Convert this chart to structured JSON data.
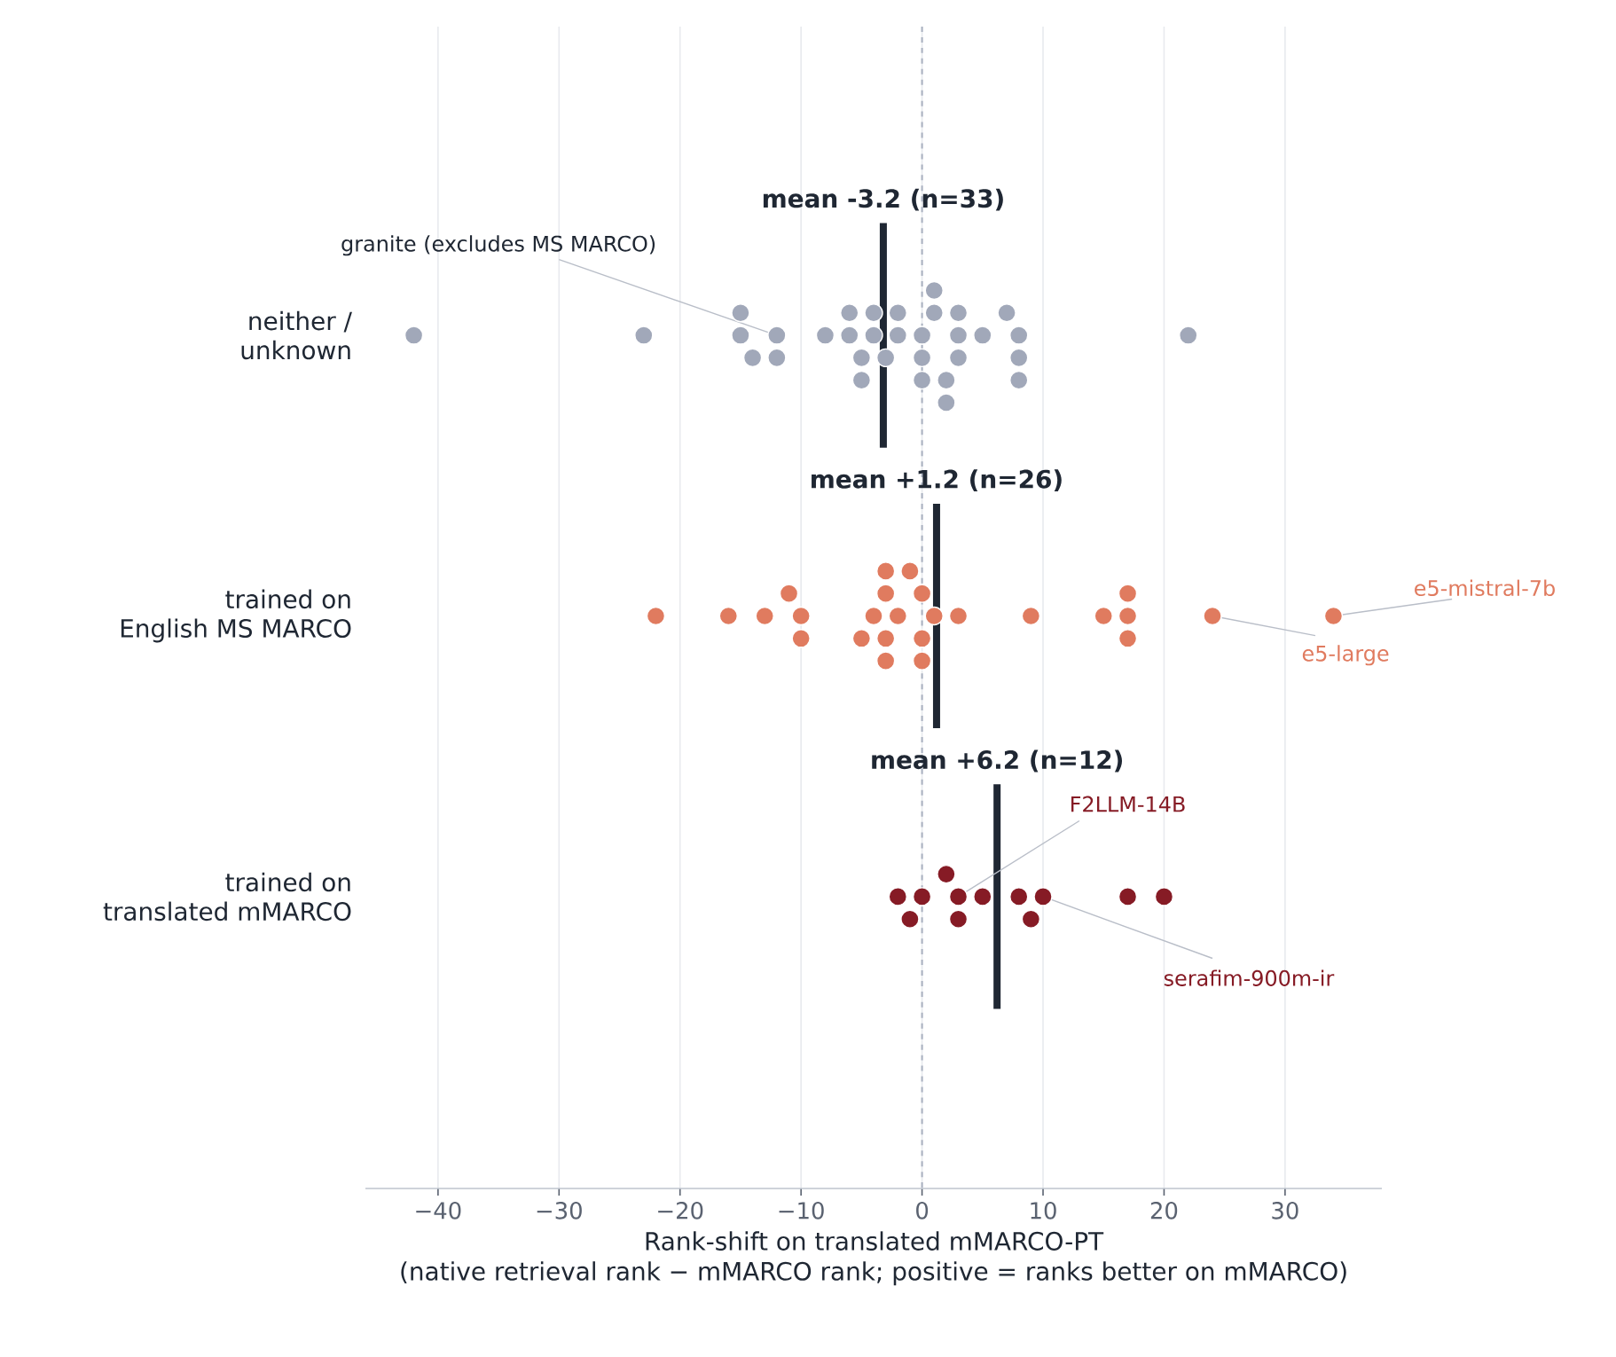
{
  "chart_data": {
    "type": "scatter",
    "orientation": "horizontal",
    "categories": [
      "neither /\nunknown",
      "trained on\nEnglish MS MARCO",
      "trained on\ntranslated mMARCO"
    ],
    "xlabel": "Rank-shift on translated mMARCO-PT\n(native retrieval rank − mMARCO rank; positive = ranks better on mMARCO)",
    "xlim": [
      -46,
      38
    ],
    "xticks": [
      {
        "value": -40,
        "label": "−40"
      },
      {
        "value": -30,
        "label": "−30"
      },
      {
        "value": -20,
        "label": "−20"
      },
      {
        "value": -10,
        "label": "−10"
      },
      0,
      10,
      20,
      30
    ],
    "grid": "x",
    "marker": "circle",
    "series": [
      {
        "color": "#a1a8b9",
        "x": [
          "neither /\nunknown",
          "neither /\nunknown",
          "neither /\nunknown",
          "neither /\nunknown",
          "neither /\nunknown",
          "neither /\nunknown",
          "neither /\nunknown",
          "neither /\nunknown",
          "neither /\nunknown",
          "neither /\nunknown",
          "neither /\nunknown",
          "neither /\nunknown",
          "neither /\nunknown",
          "neither /\nunknown",
          "neither /\nunknown",
          "neither /\nunknown",
          "neither /\nunknown",
          "neither /\nunknown",
          "neither /\nunknown",
          "neither /\nunknown",
          "neither /\nunknown",
          "neither /\nunknown",
          "neither /\nunknown",
          "neither /\nunknown",
          "neither /\nunknown",
          "neither /\nunknown",
          "neither /\nunknown",
          "neither /\nunknown",
          "neither /\nunknown",
          "neither /\nunknown",
          "neither /\nunknown",
          "neither /\nunknown",
          "neither /\nunknown"
        ],
        "values": [
          -42,
          -15,
          -12,
          -2,
          0,
          0,
          -4,
          8,
          22,
          -14,
          -8,
          -5,
          -4,
          -23,
          -12,
          1,
          3,
          3,
          3,
          5,
          8,
          -3,
          -6,
          -6,
          0,
          2,
          1,
          2,
          7,
          -15,
          -5,
          -2,
          8
        ]
      },
      {
        "color": "#e07b5f",
        "x": [
          "trained on\nEnglish MS MARCO",
          "trained on\nEnglish MS MARCO",
          "trained on\nEnglish MS MARCO",
          "trained on\nEnglish MS MARCO",
          "trained on\nEnglish MS MARCO",
          "trained on\nEnglish MS MARCO",
          "trained on\nEnglish MS MARCO",
          "trained on\nEnglish MS MARCO",
          "trained on\nEnglish MS MARCO",
          "trained on\nEnglish MS MARCO",
          "trained on\nEnglish MS MARCO",
          "trained on\nEnglish MS MARCO",
          "trained on\nEnglish MS MARCO",
          "trained on\nEnglish MS MARCO",
          "trained on\nEnglish MS MARCO",
          "trained on\nEnglish MS MARCO",
          "trained on\nEnglish MS MARCO",
          "trained on\nEnglish MS MARCO",
          "trained on\nEnglish MS MARCO",
          "trained on\nEnglish MS MARCO",
          "trained on\nEnglish MS MARCO",
          "trained on\nEnglish MS MARCO",
          "trained on\nEnglish MS MARCO",
          "trained on\nEnglish MS MARCO",
          "trained on\nEnglish MS MARCO",
          "trained on\nEnglish MS MARCO"
        ],
        "values": [
          3,
          -2,
          17,
          17,
          1,
          24,
          -4,
          -3,
          -3,
          0,
          -10,
          -10,
          0,
          -22,
          -13,
          -11,
          -16,
          15,
          17,
          -3,
          -3,
          0,
          9,
          -5,
          -1,
          34
        ]
      },
      {
        "color": "#861b25",
        "x": [
          "trained on\ntranslated mMARCO",
          "trained on\ntranslated mMARCO",
          "trained on\ntranslated mMARCO",
          "trained on\ntranslated mMARCO",
          "trained on\ntranslated mMARCO",
          "trained on\ntranslated mMARCO",
          "trained on\ntranslated mMARCO",
          "trained on\ntranslated mMARCO",
          "trained on\ntranslated mMARCO",
          "trained on\ntranslated mMARCO",
          "trained on\ntranslated mMARCO",
          "trained on\ntranslated mMARCO"
        ],
        "values": [
          3,
          3,
          8,
          10,
          -2,
          -1,
          20,
          2,
          17,
          0,
          5,
          9
        ]
      }
    ],
    "ref_lines": [
      {
        "axis": "x",
        "value": 0,
        "color": "#a9b0bf",
        "line_style": "dashed"
      },
      {
        "axis": "x",
        "value": -3.2,
        "color": "#1f2733",
        "label": "**mean -3.2  (n=33)**"
      },
      {
        "axis": "x",
        "value": 1.2,
        "color": "#1f2733",
        "label": "**mean +1.2  (n=26)**"
      },
      {
        "axis": "x",
        "value": 6.2,
        "color": "#1f2733",
        "label": "**mean +6.2  (n=12)**"
      }
    ],
    "annotations": [
      {
        "text": "granite (excludes MS MARCO)",
        "x": -12,
        "y": "neither /\nunknown"
      },
      {
        "text": "e5-large",
        "x": 24,
        "y": "trained on\nEnglish MS MARCO"
      },
      {
        "text": "e5-mistral-7b",
        "x": 34,
        "y": "trained on\nEnglish MS MARCO"
      },
      {
        "text": "F2LLM-14B",
        "x": 3,
        "y": "trained on\ntranslated mMARCO"
      },
      {
        "text": "serafim-900m-ir",
        "x": 10,
        "y": "trained on\ntranslated mMARCO"
      }
    ]
  }
}
